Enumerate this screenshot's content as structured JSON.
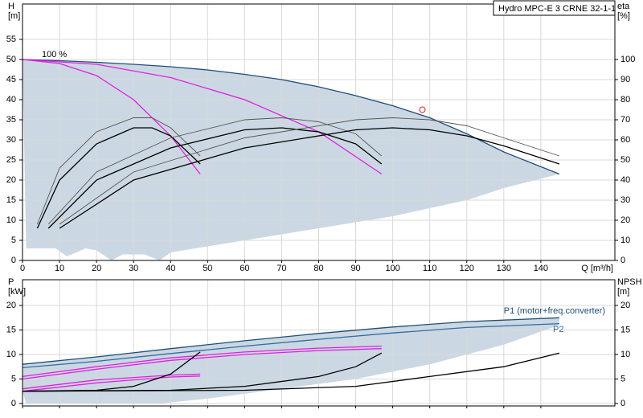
{
  "chart_data": [
    {
      "type": "line",
      "title": "Hydro MPC-E 3 CRNE 32-1-1",
      "ylabel": "H",
      "yunit": "[m]",
      "y2label": "eta",
      "y2unit": "[%]",
      "xlabel": "Q [m³/h]",
      "annotations": [
        "100 %"
      ],
      "xlim": [
        0,
        160
      ],
      "xticks": [
        0,
        10,
        20,
        30,
        40,
        50,
        60,
        70,
        80,
        90,
        100,
        110,
        120,
        130,
        140
      ],
      "ylim": [
        0,
        63.8
      ],
      "yticks": [
        0,
        5,
        10,
        15,
        20,
        25,
        30,
        35,
        40,
        45,
        50,
        55
      ],
      "y2lim": [
        0,
        127.6
      ],
      "y2ticks": [
        0,
        10,
        20,
        30,
        40,
        50,
        60,
        70,
        80,
        90,
        100
      ],
      "grid": true,
      "operating_point": {
        "x": 108,
        "y": 37.5,
        "color": "#e02020"
      },
      "series": [
        {
          "color": "#cbd8e3",
          "fill": true,
          "x": [
            0,
            10,
            20,
            30,
            40,
            50,
            60,
            70,
            80,
            90,
            100,
            110,
            120,
            130,
            145,
            130,
            120,
            110,
            100,
            90,
            80,
            70,
            60,
            50,
            40,
            37,
            33,
            27,
            24,
            20,
            17,
            12,
            9,
            1
          ],
          "values": [
            50,
            49.7,
            49.3,
            48.8,
            48.2,
            47.4,
            46.3,
            45,
            43.2,
            41,
            38.5,
            35.5,
            31.5,
            27,
            21.5,
            18,
            15,
            13,
            11,
            9.5,
            8,
            6.5,
            5,
            3.5,
            2,
            0,
            1.5,
            1.5,
            0,
            2.5,
            3,
            1,
            3,
            3
          ]
        },
        {
          "color": "#1f4e79",
          "x": [
            0,
            10,
            20,
            30,
            40,
            50,
            60,
            70,
            80,
            90,
            100,
            110,
            120,
            130,
            145
          ],
          "values": [
            50,
            49.7,
            49.3,
            48.8,
            48.2,
            47.4,
            46.3,
            45,
            43.2,
            41,
            38.5,
            35.5,
            31.5,
            27,
            21.5
          ]
        },
        {
          "color": "#e020e0",
          "x": [
            0,
            10,
            20,
            30,
            40,
            48
          ],
          "values": [
            50,
            49,
            46,
            40,
            31,
            21.5
          ]
        },
        {
          "color": "#e020e0",
          "x": [
            0,
            20,
            40,
            60,
            80,
            97
          ],
          "values": [
            50,
            48.8,
            45.5,
            40,
            32,
            21.5
          ]
        },
        {
          "color": "#555555",
          "axis": "y2",
          "x": [
            4,
            10,
            20,
            30,
            35,
            40,
            48
          ],
          "values": [
            18,
            46,
            64,
            71,
            71,
            66,
            52
          ]
        },
        {
          "color": "#000000",
          "axis": "y2",
          "x": [
            4,
            10,
            20,
            30,
            35,
            40,
            48
          ],
          "values": [
            16,
            40,
            58,
            66,
            66,
            62,
            48
          ]
        },
        {
          "color": "#555555",
          "axis": "y2",
          "x": [
            7,
            20,
            40,
            60,
            70,
            80,
            90,
            97
          ],
          "values": [
            18,
            44,
            61,
            70,
            71,
            69,
            63,
            52
          ]
        },
        {
          "color": "#000000",
          "axis": "y2",
          "x": [
            7,
            20,
            40,
            60,
            70,
            80,
            90,
            97
          ],
          "values": [
            16,
            40,
            56,
            65,
            66,
            64,
            58,
            48
          ]
        },
        {
          "color": "#555555",
          "axis": "y2",
          "x": [
            10,
            30,
            60,
            90,
            100,
            110,
            120,
            130,
            145
          ],
          "values": [
            18,
            44,
            61,
            70,
            71,
            70,
            67,
            61,
            52
          ]
        },
        {
          "color": "#000000",
          "axis": "y2",
          "x": [
            10,
            30,
            60,
            90,
            100,
            110,
            120,
            130,
            145
          ],
          "values": [
            16,
            40,
            56,
            65,
            66,
            65,
            62,
            57,
            48
          ]
        }
      ]
    },
    {
      "type": "line",
      "ylabel": "P",
      "yunit": "[kW]",
      "y2label": "NPSH",
      "y2unit": "[m]",
      "xlim": [
        0,
        160
      ],
      "xticks": [
        0,
        10,
        20,
        30,
        40,
        50,
        60,
        70,
        80,
        90,
        100,
        110,
        120,
        130,
        140
      ],
      "ylim": [
        -0.5,
        25.25
      ],
      "yticks": [
        0,
        5,
        10,
        15,
        20
      ],
      "y2lim": [
        -0.5,
        25.25
      ],
      "y2ticks": [
        0,
        5,
        10,
        15,
        20
      ],
      "grid": true,
      "series": [
        {
          "color": "#cbd8e3",
          "fill": true,
          "x": [
            0,
            20,
            40,
            60,
            80,
            100,
            120,
            145,
            145,
            130,
            110,
            90,
            70,
            50,
            37,
            1,
            0
          ],
          "values": [
            8,
            9.5,
            11.2,
            12.8,
            14.3,
            15.6,
            16.7,
            17.5,
            16,
            12,
            8,
            5,
            3,
            1,
            0,
            0,
            2.5
          ]
        },
        {
          "name": "P1 (motor+freq.converter)",
          "color": "#1f4e79",
          "x": [
            0,
            20,
            40,
            60,
            80,
            100,
            120,
            145
          ],
          "values": [
            8,
            9.5,
            11.2,
            12.8,
            14.3,
            15.6,
            16.7,
            17.5
          ]
        },
        {
          "name": "P2",
          "color": "#2e6da4",
          "x": [
            0,
            20,
            40,
            60,
            80,
            100,
            120,
            145
          ],
          "values": [
            7.3,
            8.6,
            10.2,
            11.7,
            13.1,
            14.4,
            15.5,
            16.3
          ]
        },
        {
          "color": "#e020e0",
          "x": [
            0,
            20,
            40,
            48
          ],
          "values": [
            3,
            4.8,
            5.8,
            6
          ]
        },
        {
          "color": "#e020e0",
          "x": [
            0,
            20,
            40,
            48
          ],
          "values": [
            2.5,
            4.2,
            5.4,
            5.6
          ]
        },
        {
          "color": "#e020e0",
          "x": [
            0,
            20,
            40,
            60,
            80,
            97
          ],
          "values": [
            5.5,
            7.5,
            9.3,
            10.5,
            11.3,
            11.7
          ]
        },
        {
          "color": "#e020e0",
          "x": [
            0,
            20,
            40,
            60,
            80,
            97
          ],
          "values": [
            5,
            7,
            8.8,
            10,
            10.8,
            11.2
          ]
        },
        {
          "color": "#000000",
          "axis": "y2",
          "x": [
            0,
            20,
            30,
            40,
            48
          ],
          "values": [
            2.5,
            2.7,
            3.5,
            6,
            10.5
          ]
        },
        {
          "color": "#000000",
          "axis": "y2",
          "x": [
            0,
            40,
            60,
            80,
            90,
            97
          ],
          "values": [
            2.5,
            2.7,
            3.5,
            5.5,
            7.5,
            10.3
          ]
        },
        {
          "color": "#000000",
          "axis": "y2",
          "x": [
            0,
            60,
            90,
            110,
            130,
            145
          ],
          "values": [
            2.5,
            2.7,
            3.5,
            5.5,
            7.5,
            10.3
          ]
        }
      ]
    }
  ]
}
